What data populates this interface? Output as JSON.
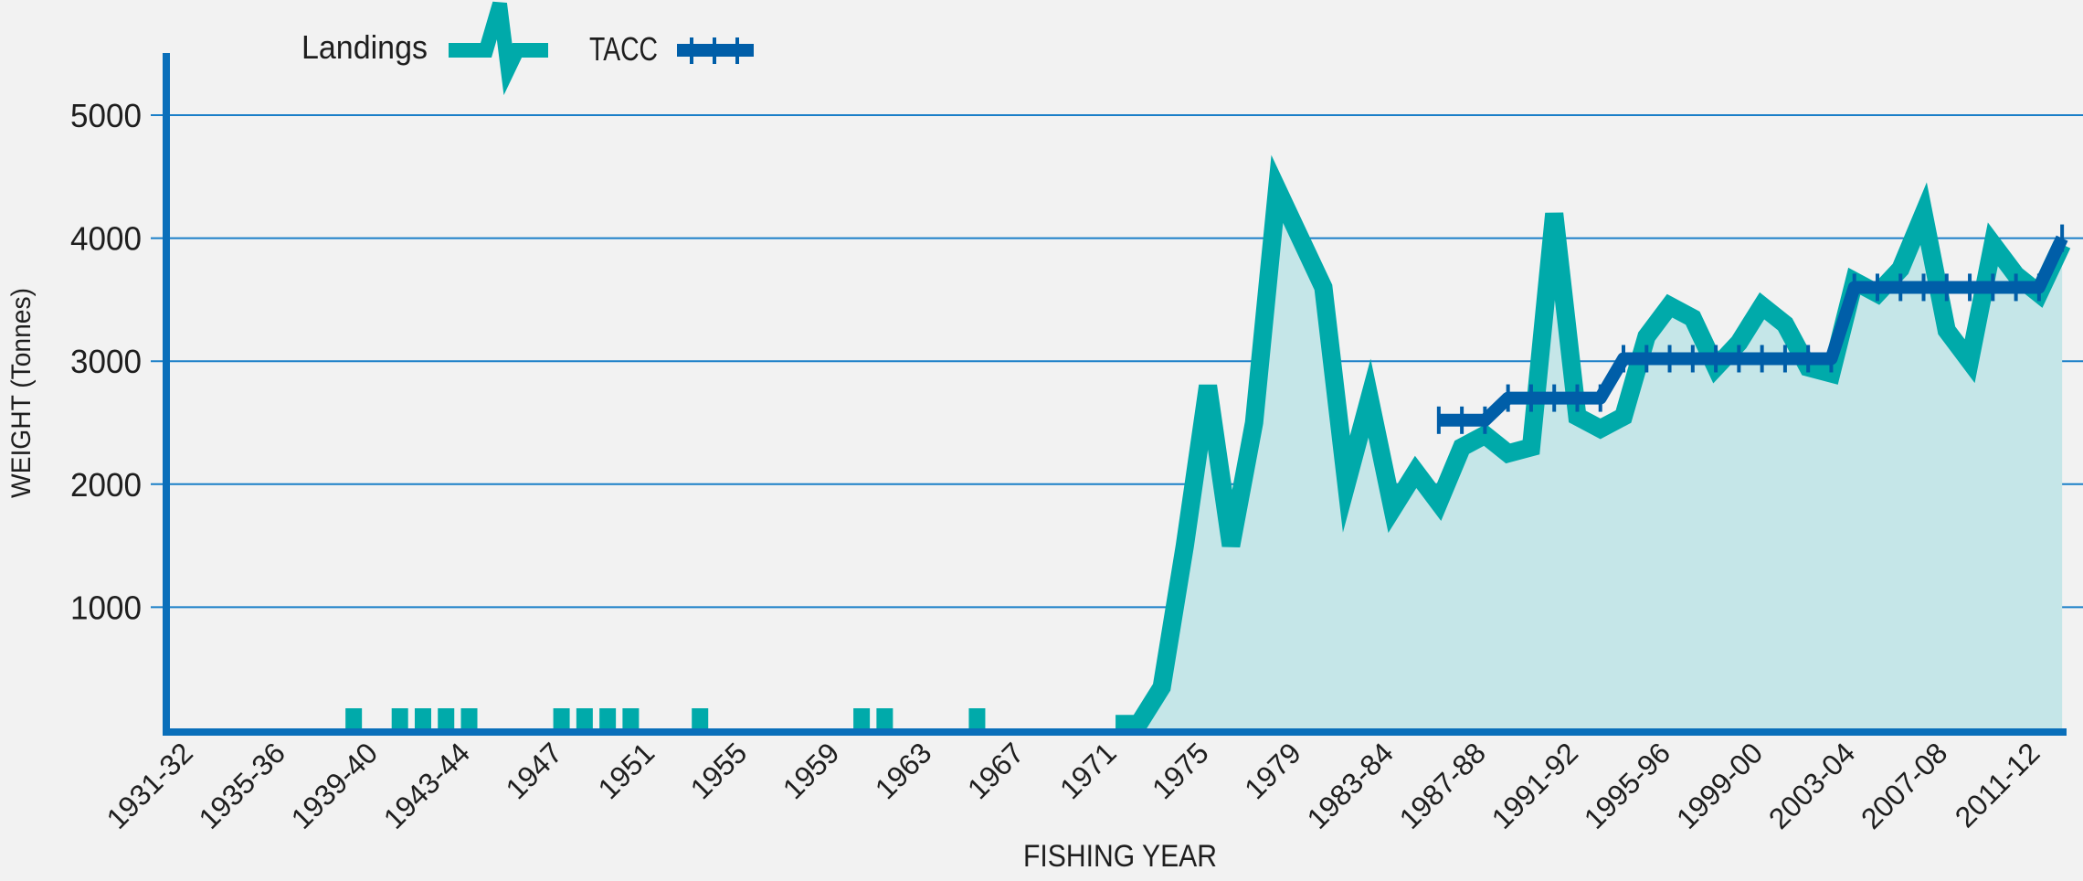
{
  "chart_data": {
    "type": "area",
    "title": "",
    "xlabel": "FISHING YEAR",
    "ylabel": "WEIGHT (Tonnes)",
    "ylim": [
      0,
      5500
    ],
    "yticks": [
      1000,
      2000,
      3000,
      4000,
      5000
    ],
    "grid": "horizontal",
    "legend_position": "top-left",
    "colors": {
      "background": "#f2f2f2",
      "landings": "#00aaaa",
      "landings_fill": "#c5e6e8",
      "tacc": "#005ea8",
      "axis": "#0a6fba",
      "grid": "#1a7fc8"
    },
    "first_year": 1931,
    "tick_labels": [
      "1931-32",
      "1935-36",
      "1939-40",
      "1943-44",
      "1947",
      "1951",
      "1955",
      "1959",
      "1963",
      "1967",
      "1971",
      "1975",
      "1979",
      "1983-84",
      "1987-88",
      "1991-92",
      "1995-96",
      "1999-00",
      "2003-04",
      "2007-08",
      "2011-12"
    ],
    "series": [
      {
        "name": "Landings",
        "values": [
          0,
          0,
          0,
          0,
          0,
          0,
          0,
          0,
          50,
          0,
          50,
          50,
          50,
          50,
          0,
          0,
          0,
          50,
          50,
          50,
          50,
          0,
          0,
          50,
          0,
          0,
          0,
          0,
          0,
          0,
          50,
          50,
          0,
          0,
          0,
          50,
          0,
          0,
          0,
          0,
          0,
          50,
          50,
          350,
          1500,
          2800,
          1500,
          2500,
          4400,
          4000,
          3600,
          2000,
          2700,
          1800,
          2100,
          1850,
          2300,
          2400,
          2250,
          2300,
          4200,
          2550,
          2450,
          2550,
          3200,
          3450,
          3350,
          2950,
          3150,
          3450,
          3300,
          2950,
          2900,
          3650,
          3550,
          3750,
          4200,
          3250,
          3000,
          3950,
          3700,
          3550,
          3950
        ]
      },
      {
        "name": "TACC",
        "values": [
          null,
          null,
          null,
          null,
          null,
          null,
          null,
          null,
          null,
          null,
          null,
          null,
          null,
          null,
          null,
          null,
          null,
          null,
          null,
          null,
          null,
          null,
          null,
          null,
          null,
          null,
          null,
          null,
          null,
          null,
          null,
          null,
          null,
          null,
          null,
          null,
          null,
          null,
          null,
          null,
          null,
          null,
          null,
          null,
          null,
          null,
          null,
          null,
          null,
          null,
          null,
          null,
          null,
          null,
          null,
          2520,
          2520,
          2520,
          2700,
          2700,
          2700,
          2700,
          2700,
          3020,
          3020,
          3020,
          3020,
          3020,
          3020,
          3020,
          3020,
          3020,
          3020,
          3600,
          3600,
          3600,
          3600,
          3600,
          3600,
          3600,
          3600,
          3600,
          4000
        ]
      }
    ]
  }
}
